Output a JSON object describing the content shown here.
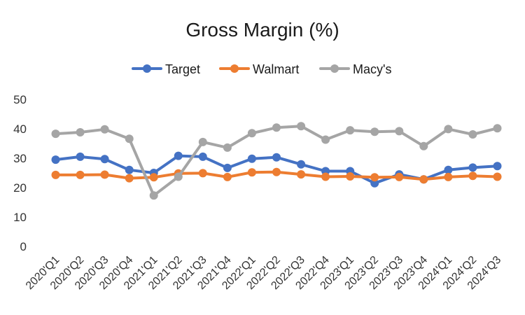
{
  "chart_data": {
    "type": "line",
    "title": "Gross Margin (%)",
    "xlabel": "",
    "ylabel": "",
    "ylim": [
      0,
      50
    ],
    "yticks": [
      0,
      10,
      20,
      30,
      40,
      50
    ],
    "grid": false,
    "legend_position": "top",
    "categories": [
      "2020'Q1",
      "2020'Q2",
      "2020'Q3",
      "2020'Q4",
      "2021'Q1",
      "2021'Q2",
      "2021'Q3",
      "2021'Q4",
      "2022'Q1",
      "2022'Q2",
      "2022'Q3",
      "2022'Q4",
      "2023'Q1",
      "2023'Q2",
      "2023'Q3",
      "2023'Q4",
      "2024'Q1",
      "2024'Q2",
      "2024'Q3"
    ],
    "series": [
      {
        "name": "Target",
        "color": "#4472C4",
        "values": [
          29.5,
          30.5,
          29.7,
          26.0,
          25.0,
          30.8,
          30.5,
          26.7,
          29.8,
          30.3,
          27.9,
          25.6,
          25.6,
          21.5,
          24.5,
          22.8,
          26.0,
          26.8,
          27.3
        ]
      },
      {
        "name": "Walmart",
        "color": "#ED7D31",
        "values": [
          24.3,
          24.3,
          24.4,
          23.2,
          23.5,
          24.8,
          24.9,
          23.6,
          25.2,
          25.3,
          24.5,
          23.7,
          23.8,
          23.5,
          23.6,
          22.8,
          23.6,
          24.0,
          23.7
        ]
      },
      {
        "name": "Macy's",
        "color": "#A5A5A5",
        "values": [
          38.3,
          38.8,
          39.8,
          36.6,
          17.3,
          23.7,
          35.5,
          33.6,
          38.5,
          40.4,
          40.9,
          36.3,
          39.5,
          39.0,
          39.2,
          34.1,
          39.9,
          38.1,
          40.2
        ]
      }
    ]
  }
}
